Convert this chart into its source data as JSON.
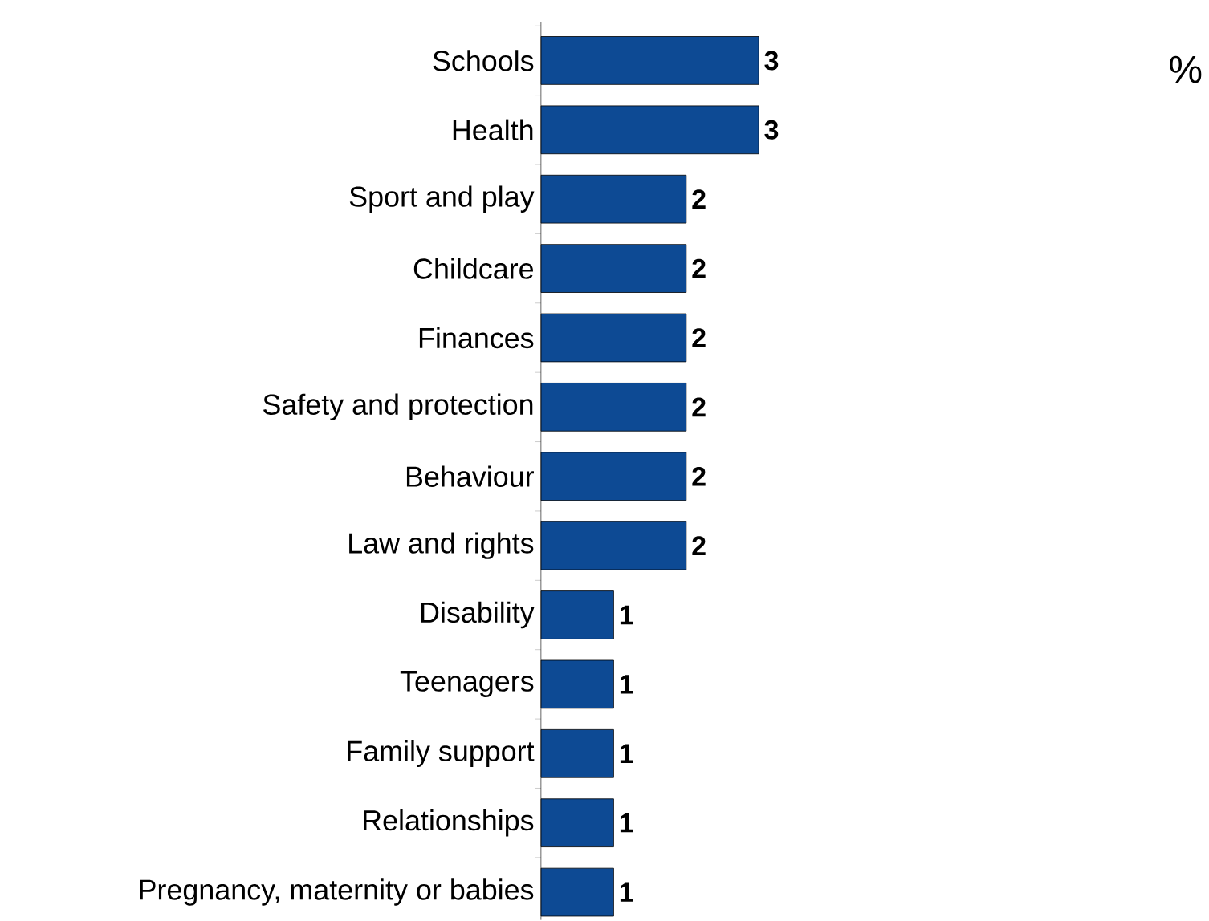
{
  "chart_data": {
    "type": "bar",
    "orientation": "horizontal",
    "categories": [
      "Schools",
      "Health",
      "Sport and play",
      "Childcare",
      "Finances",
      "Safety and protection",
      "Behaviour",
      "Law and rights",
      "Disability",
      "Teenagers",
      "Family support",
      "Relationships",
      "Pregnancy, maternity or babies"
    ],
    "values": [
      3,
      3,
      2,
      2,
      2,
      2,
      2,
      2,
      1,
      1,
      1,
      1,
      1
    ],
    "color": "#0d4a94",
    "data_labels": true,
    "tick_labels": "y",
    "annotations": [
      "%"
    ]
  }
}
